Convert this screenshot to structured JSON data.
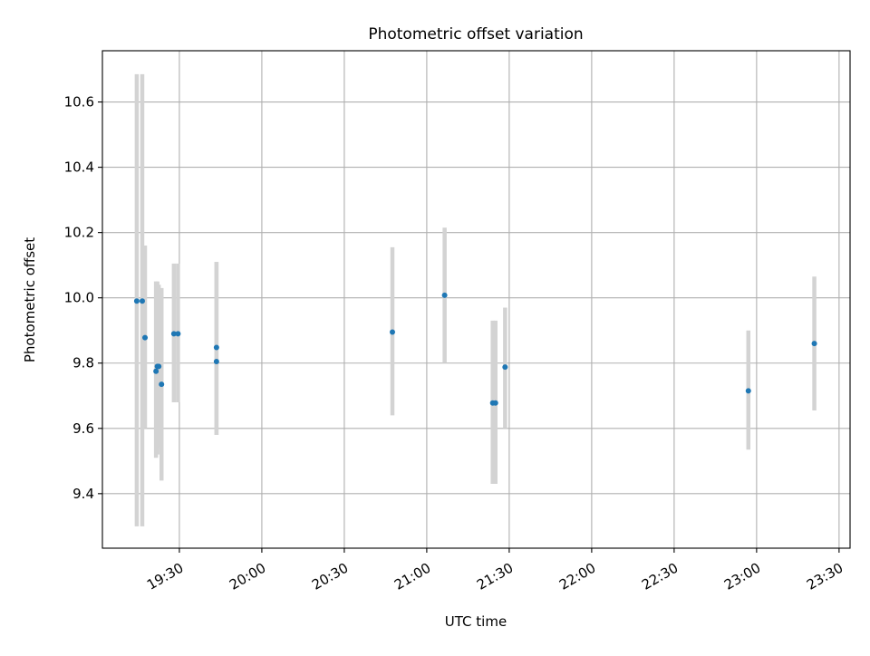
{
  "chart_data": {
    "type": "scatter",
    "title": "Photometric offset variation",
    "xlabel": "UTC time",
    "ylabel": "Photometric offset",
    "x_axis": {
      "kind": "time",
      "ticks": [
        "19:30",
        "20:00",
        "20:30",
        "21:00",
        "21:30",
        "22:00",
        "22:30",
        "23:00",
        "23:30"
      ],
      "range": [
        "19:02",
        "23:34"
      ]
    },
    "y_axis": {
      "ticks": [
        "9.4",
        "9.6",
        "9.8",
        "10.0",
        "10.2",
        "10.4",
        "10.6"
      ],
      "ylim": [
        9.233,
        10.757
      ]
    },
    "grid": true,
    "colors": {
      "points": "#1f77b4",
      "errorbars": "#d3d3d3",
      "grid": "#b0b0b0"
    },
    "series": [
      {
        "points": [
          {
            "x": "19:14:30",
            "y": 9.99,
            "ylo": 9.3,
            "yhi": 10.685
          },
          {
            "x": "19:16:30",
            "y": 9.99,
            "ylo": 9.3,
            "yhi": 10.685
          },
          {
            "x": "19:17:30",
            "y": 9.878,
            "ylo": 9.6,
            "yhi": 10.16
          },
          {
            "x": "19:21:30",
            "y": 9.775,
            "ylo": 9.51,
            "yhi": 10.05
          },
          {
            "x": "19:22:00",
            "y": 9.79,
            "ylo": 9.52,
            "yhi": 10.05
          },
          {
            "x": "19:22:30",
            "y": 9.79,
            "ylo": 9.54,
            "yhi": 10.04
          },
          {
            "x": "19:23:30",
            "y": 9.735,
            "ylo": 9.44,
            "yhi": 10.03
          },
          {
            "x": "19:28:00",
            "y": 9.89,
            "ylo": 9.68,
            "yhi": 10.105
          },
          {
            "x": "19:29:30",
            "y": 9.89,
            "ylo": 9.68,
            "yhi": 10.105
          },
          {
            "x": "19:43:30",
            "y": 9.805,
            "ylo": 9.58,
            "yhi": 10.11
          },
          {
            "x": "19:43:30",
            "y": 9.848,
            "ylo": 9.58,
            "yhi": 10.11
          },
          {
            "x": "20:47:30",
            "y": 9.895,
            "ylo": 9.64,
            "yhi": 10.155
          },
          {
            "x": "21:06:30",
            "y": 10.008,
            "ylo": 9.8,
            "yhi": 10.215
          },
          {
            "x": "21:24:00",
            "y": 9.678,
            "ylo": 9.43,
            "yhi": 9.93
          },
          {
            "x": "21:25:00",
            "y": 9.678,
            "ylo": 9.43,
            "yhi": 9.93
          },
          {
            "x": "21:28:30",
            "y": 9.788,
            "ylo": 9.6,
            "yhi": 9.97
          },
          {
            "x": "22:57:00",
            "y": 9.715,
            "ylo": 9.535,
            "yhi": 9.9
          },
          {
            "x": "23:21:00",
            "y": 9.86,
            "ylo": 9.655,
            "yhi": 10.065
          }
        ]
      }
    ]
  }
}
